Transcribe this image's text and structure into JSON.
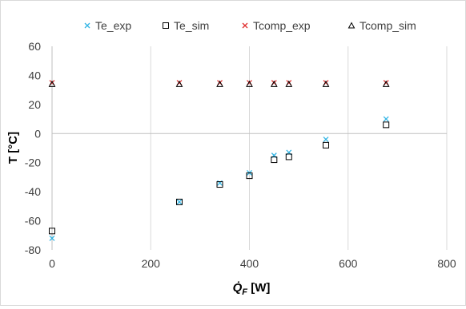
{
  "chart_data": {
    "type": "scatter",
    "xlabel": "Q̇_F [W]",
    "xlabel_symbol": "Q̇",
    "xlabel_subscript": "F",
    "xlabel_unit": " [W]",
    "ylabel": "T [°C]",
    "xlim": [
      0,
      800
    ],
    "ylim": [
      -80,
      60
    ],
    "x_ticks": [
      0,
      200,
      400,
      600,
      800
    ],
    "y_ticks": [
      -80,
      -60,
      -40,
      -20,
      0,
      20,
      40,
      60
    ],
    "x_tick_labels": [
      "0",
      "200",
      "400",
      "600",
      "800"
    ],
    "y_tick_labels": [
      "-80",
      "-60",
      "-40",
      "-20",
      "0",
      "20",
      "40",
      "60"
    ],
    "grid": "vertical",
    "legend_position": "top",
    "series": [
      {
        "name": "Te_exp",
        "marker": "x",
        "color": "#33b5e5",
        "x": [
          0,
          258,
          340,
          400,
          450,
          480,
          555,
          677
        ],
        "y": [
          -72,
          -47,
          -34,
          -27,
          -15,
          -13,
          -4,
          10
        ]
      },
      {
        "name": "Te_sim",
        "marker": "square",
        "color": "#000000",
        "x": [
          0,
          258,
          340,
          400,
          450,
          480,
          555,
          677
        ],
        "y": [
          -67,
          -47,
          -35,
          -29,
          -18,
          -16,
          -8,
          6
        ]
      },
      {
        "name": "Tcomp_exp",
        "marker": "x",
        "color": "#e03030",
        "x": [
          0,
          258,
          340,
          400,
          450,
          480,
          555,
          677
        ],
        "y": [
          35,
          35,
          35,
          35,
          35,
          35,
          35,
          35
        ]
      },
      {
        "name": "Tcomp_sim",
        "marker": "triangle",
        "color": "#000000",
        "x": [
          0,
          258,
          340,
          400,
          450,
          480,
          555,
          677
        ],
        "y": [
          34,
          34,
          34,
          34,
          34,
          34,
          34,
          34
        ]
      }
    ]
  }
}
